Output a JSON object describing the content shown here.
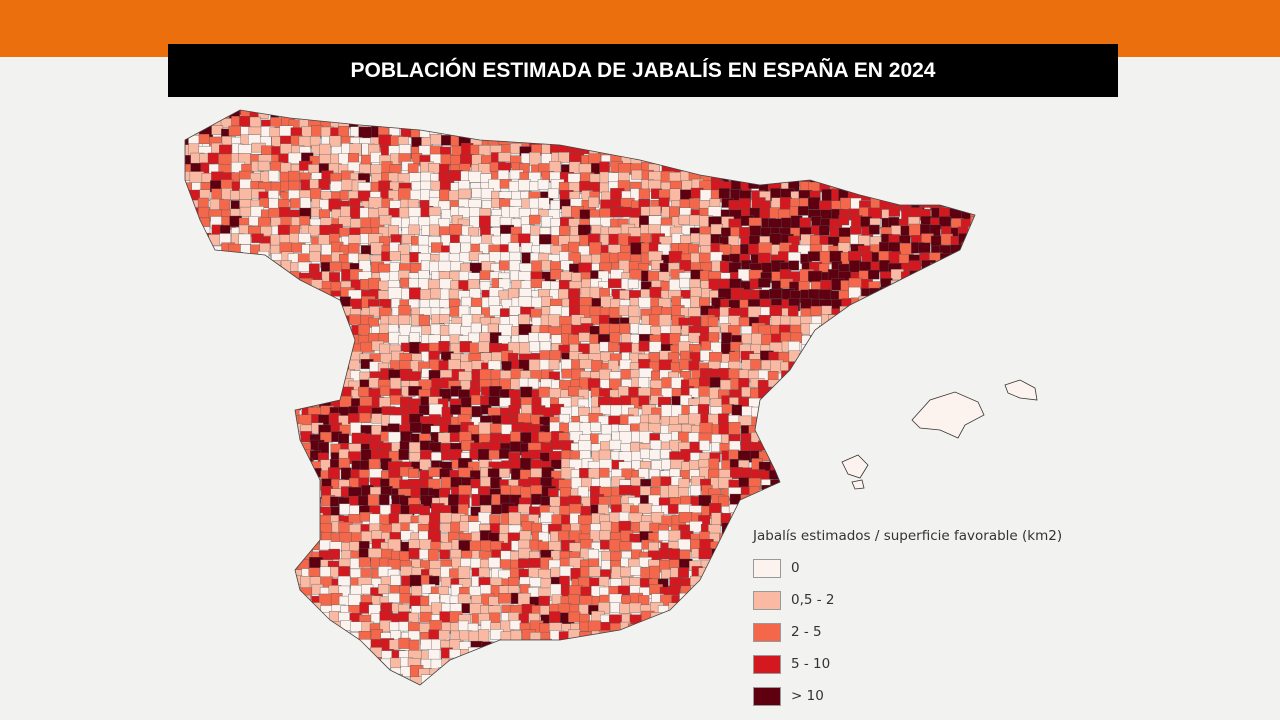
{
  "header": {
    "title": "POBLACIÓN ESTIMADA DE JABALÍS EN ESPAÑA EN 2024",
    "accent_color": "#ec6f0e"
  },
  "map": {
    "region": "Spain (peninsula and Balearic Islands), municipalities",
    "legend": {
      "title": "Jabalís estimados / superficie favorable (km2)",
      "items": [
        {
          "label": "0",
          "color": "#fcf2ee"
        },
        {
          "label": "0,5 - 2",
          "color": "#f9b9a2"
        },
        {
          "label": "2 - 5",
          "color": "#f4674b"
        },
        {
          "label": "5 - 10",
          "color": "#d3191f"
        },
        {
          "label": "> 10",
          "color": "#5e0010"
        }
      ]
    }
  }
}
